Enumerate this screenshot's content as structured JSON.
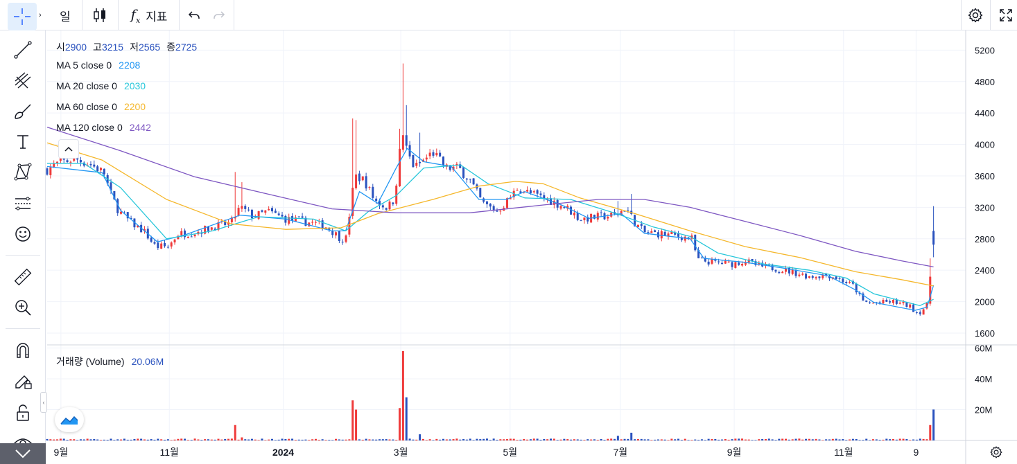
{
  "toolbar": {
    "interval_label": "일",
    "indicators_label": "지표",
    "fx_label": "f",
    "fx_sub": "x"
  },
  "left_tools": [
    "crosshair-icon",
    "trend-line-icon",
    "fib-icon",
    "brush-icon",
    "text-icon",
    "pattern-icon",
    "forecast-icon",
    "emoji-icon",
    "ruler-icon",
    "zoom-in-icon",
    "magnet-icon",
    "lock-drawing-icon",
    "unlock-icon",
    "eye-icon"
  ],
  "legend": {
    "ohlc": [
      {
        "k": "시",
        "v": "2900"
      },
      {
        "k": "고",
        "v": "3215"
      },
      {
        "k": "저",
        "v": "2565"
      },
      {
        "k": "종",
        "v": "2725"
      }
    ],
    "ma": [
      {
        "label": "MA 5 close 0",
        "value": "2208",
        "color": "#2196f3"
      },
      {
        "label": "MA 20 close 0",
        "value": "2030",
        "color": "#26c6da"
      },
      {
        "label": "MA 60 close 0",
        "value": "2200",
        "color": "#f5b72b"
      },
      {
        "label": "MA 120 close 0",
        "value": "2442",
        "color": "#7e57c2"
      }
    ],
    "volume_label": "거래량 (Volume)",
    "volume_value": "20.06M"
  },
  "colors": {
    "up": "#ef3a3a",
    "down": "#2a52be",
    "grid": "#f0f3fa",
    "axis_text": "#131722"
  },
  "chart_data": {
    "type": "candlestick",
    "price_axis": {
      "ticks": [
        1600,
        2000,
        2400,
        2800,
        3200,
        3600,
        4000,
        4400,
        4800,
        5200
      ],
      "range": [
        1450,
        5450
      ]
    },
    "volume_axis": {
      "ticks": [
        "20M",
        "40M",
        "60M"
      ],
      "range_millions": [
        0,
        62
      ]
    },
    "x_tick_labels": [
      {
        "label": "9월",
        "bold": false,
        "pos": 0.015
      },
      {
        "label": "11월",
        "bold": false,
        "pos": 0.133
      },
      {
        "label": "2024",
        "bold": true,
        "pos": 0.257
      },
      {
        "label": "3월",
        "bold": false,
        "pos": 0.385
      },
      {
        "label": "5월",
        "bold": false,
        "pos": 0.504
      },
      {
        "label": "7월",
        "bold": false,
        "pos": 0.624
      },
      {
        "label": "9월",
        "bold": false,
        "pos": 0.748
      },
      {
        "label": "11월",
        "bold": false,
        "pos": 0.867
      },
      {
        "label": "9",
        "bold": false,
        "pos": 0.946
      }
    ],
    "price_anchors": [
      [
        0.0,
        3680
      ],
      [
        0.012,
        3760
      ],
      [
        0.03,
        3820
      ],
      [
        0.048,
        3740
      ],
      [
        0.062,
        3640
      ],
      [
        0.068,
        3400
      ],
      [
        0.078,
        3150
      ],
      [
        0.092,
        3000
      ],
      [
        0.105,
        2900
      ],
      [
        0.118,
        2700
      ],
      [
        0.132,
        2700
      ],
      [
        0.142,
        2860
      ],
      [
        0.16,
        2880
      ],
      [
        0.18,
        2950
      ],
      [
        0.2,
        3000
      ],
      [
        0.21,
        3200
      ],
      [
        0.225,
        3080
      ],
      [
        0.24,
        3150
      ],
      [
        0.26,
        3050
      ],
      [
        0.29,
        3000
      ],
      [
        0.305,
        2950
      ],
      [
        0.318,
        2820
      ],
      [
        0.325,
        2780
      ],
      [
        0.335,
        3600
      ],
      [
        0.345,
        3550
      ],
      [
        0.356,
        3300
      ],
      [
        0.368,
        3200
      ],
      [
        0.376,
        3250
      ],
      [
        0.382,
        3650
      ],
      [
        0.386,
        4200
      ],
      [
        0.392,
        3900
      ],
      [
        0.4,
        3700
      ],
      [
        0.41,
        3800
      ],
      [
        0.42,
        3900
      ],
      [
        0.434,
        3700
      ],
      [
        0.448,
        3700
      ],
      [
        0.46,
        3550
      ],
      [
        0.474,
        3250
      ],
      [
        0.49,
        3150
      ],
      [
        0.505,
        3330
      ],
      [
        0.512,
        3450
      ],
      [
        0.525,
        3380
      ],
      [
        0.545,
        3300
      ],
      [
        0.565,
        3200
      ],
      [
        0.58,
        3050
      ],
      [
        0.6,
        3080
      ],
      [
        0.62,
        3100
      ],
      [
        0.63,
        3200
      ],
      [
        0.64,
        3000
      ],
      [
        0.65,
        2880
      ],
      [
        0.67,
        2860
      ],
      [
        0.69,
        2830
      ],
      [
        0.702,
        2800
      ],
      [
        0.708,
        2530
      ],
      [
        0.725,
        2500
      ],
      [
        0.745,
        2480
      ],
      [
        0.76,
        2520
      ],
      [
        0.775,
        2450
      ],
      [
        0.79,
        2430
      ],
      [
        0.81,
        2380
      ],
      [
        0.83,
        2320
      ],
      [
        0.85,
        2340
      ],
      [
        0.86,
        2300
      ],
      [
        0.878,
        2200
      ],
      [
        0.888,
        2000
      ],
      [
        0.9,
        1980
      ],
      [
        0.92,
        2000
      ],
      [
        0.938,
        1950
      ],
      [
        0.948,
        1850
      ],
      [
        0.958,
        1950
      ],
      [
        0.962,
        2400
      ],
      [
        0.965,
        2725
      ]
    ],
    "ma_series": {
      "ma5": [
        [
          0.0,
          3720
        ],
        [
          0.06,
          3640
        ],
        [
          0.08,
          3160
        ],
        [
          0.12,
          2760
        ],
        [
          0.15,
          2850
        ],
        [
          0.21,
          3100
        ],
        [
          0.26,
          3050
        ],
        [
          0.31,
          2900
        ],
        [
          0.325,
          2900
        ],
        [
          0.34,
          3400
        ],
        [
          0.36,
          3250
        ],
        [
          0.38,
          3700
        ],
        [
          0.392,
          3950
        ],
        [
          0.41,
          3780
        ],
        [
          0.44,
          3720
        ],
        [
          0.47,
          3300
        ],
        [
          0.5,
          3300
        ],
        [
          0.52,
          3400
        ],
        [
          0.56,
          3230
        ],
        [
          0.59,
          3060
        ],
        [
          0.625,
          3120
        ],
        [
          0.65,
          2870
        ],
        [
          0.7,
          2800
        ],
        [
          0.715,
          2550
        ],
        [
          0.76,
          2500
        ],
        [
          0.8,
          2430
        ],
        [
          0.85,
          2330
        ],
        [
          0.88,
          2150
        ],
        [
          0.9,
          1990
        ],
        [
          0.945,
          1890
        ],
        [
          0.958,
          1930
        ],
        [
          0.965,
          2208
        ]
      ],
      "ma20": [
        [
          0.0,
          3760
        ],
        [
          0.04,
          3760
        ],
        [
          0.08,
          3450
        ],
        [
          0.13,
          2800
        ],
        [
          0.18,
          2900
        ],
        [
          0.23,
          3080
        ],
        [
          0.29,
          3050
        ],
        [
          0.325,
          2900
        ],
        [
          0.35,
          3150
        ],
        [
          0.38,
          3350
        ],
        [
          0.41,
          3700
        ],
        [
          0.45,
          3740
        ],
        [
          0.48,
          3500
        ],
        [
          0.52,
          3320
        ],
        [
          0.57,
          3300
        ],
        [
          0.62,
          3120
        ],
        [
          0.66,
          2950
        ],
        [
          0.7,
          2830
        ],
        [
          0.73,
          2620
        ],
        [
          0.78,
          2480
        ],
        [
          0.83,
          2400
        ],
        [
          0.87,
          2300
        ],
        [
          0.9,
          2100
        ],
        [
          0.95,
          1950
        ],
        [
          0.965,
          2030
        ]
      ],
      "ma60": [
        [
          0.0,
          4020
        ],
        [
          0.06,
          3800
        ],
        [
          0.13,
          3300
        ],
        [
          0.2,
          2990
        ],
        [
          0.26,
          2920
        ],
        [
          0.32,
          2940
        ],
        [
          0.36,
          3120
        ],
        [
          0.42,
          3300
        ],
        [
          0.47,
          3470
        ],
        [
          0.51,
          3530
        ],
        [
          0.54,
          3500
        ],
        [
          0.58,
          3320
        ],
        [
          0.64,
          3120
        ],
        [
          0.7,
          2900
        ],
        [
          0.76,
          2700
        ],
        [
          0.82,
          2560
        ],
        [
          0.88,
          2380
        ],
        [
          0.93,
          2280
        ],
        [
          0.965,
          2200
        ]
      ],
      "ma120": [
        [
          0.0,
          4220
        ],
        [
          0.08,
          3920
        ],
        [
          0.16,
          3590
        ],
        [
          0.24,
          3370
        ],
        [
          0.31,
          3180
        ],
        [
          0.38,
          3130
        ],
        [
          0.46,
          3130
        ],
        [
          0.54,
          3230
        ],
        [
          0.6,
          3300
        ],
        [
          0.65,
          3300
        ],
        [
          0.7,
          3200
        ],
        [
          0.76,
          3020
        ],
        [
          0.82,
          2840
        ],
        [
          0.88,
          2640
        ],
        [
          0.93,
          2520
        ],
        [
          0.965,
          2442
        ]
      ]
    },
    "spikes": [
      {
        "pos": 0.205,
        "high": 3650,
        "vol": 10
      },
      {
        "pos": 0.213,
        "high": 3520,
        "vol": 2
      },
      {
        "pos": 0.333,
        "high": 4330,
        "vol": 26
      },
      {
        "pos": 0.337,
        "high": 4310,
        "vol": 20
      },
      {
        "pos": 0.383,
        "high": 4200,
        "vol": 21
      },
      {
        "pos": 0.386,
        "high": 5000,
        "vol": 38
      },
      {
        "pos": 0.389,
        "high": 5030,
        "vol": 58
      },
      {
        "pos": 0.392,
        "high": 4500,
        "vol": 28
      },
      {
        "pos": 0.406,
        "high": 4150,
        "vol": 4
      },
      {
        "pos": 0.62,
        "high": 3280,
        "vol": 3
      },
      {
        "pos": 0.635,
        "high": 3370,
        "vol": 5
      },
      {
        "pos": 0.963,
        "high": 2550,
        "vol": 10
      },
      {
        "pos": 0.967,
        "high": 3215,
        "vol": 20
      }
    ],
    "last_candle": {
      "open": 2900,
      "high": 3215,
      "low": 2565,
      "close": 2725,
      "volume_millions": 20.06
    }
  }
}
